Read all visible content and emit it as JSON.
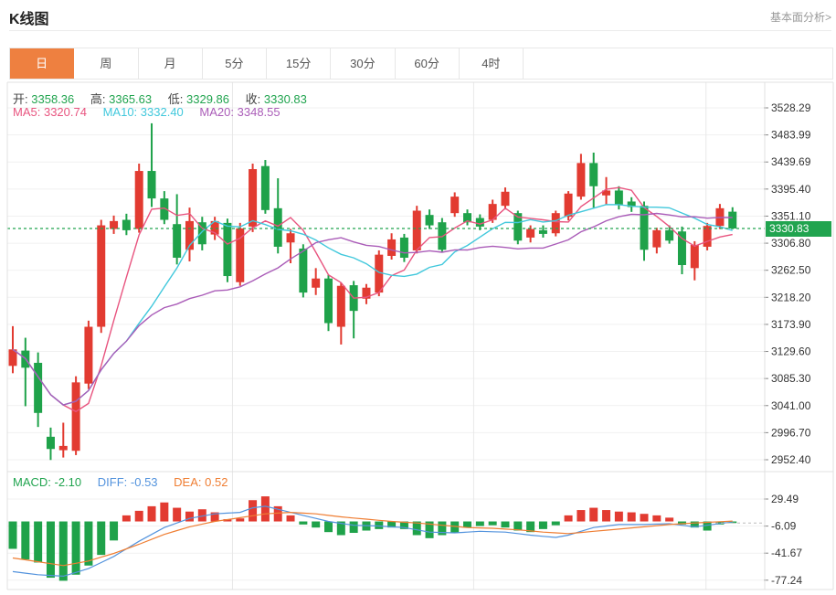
{
  "header": {
    "title": "K线图",
    "link": "基本面分析>"
  },
  "tabs": [
    {
      "name": "tab-day",
      "label": "日",
      "active": true
    },
    {
      "name": "tab-week",
      "label": "周",
      "active": false
    },
    {
      "name": "tab-month",
      "label": "月",
      "active": false
    },
    {
      "name": "tab-5min",
      "label": "5分",
      "active": false
    },
    {
      "name": "tab-15min",
      "label": "15分",
      "active": false
    },
    {
      "name": "tab-30min",
      "label": "30分",
      "active": false
    },
    {
      "name": "tab-60min",
      "label": "60分",
      "active": false
    },
    {
      "name": "tab-4hour",
      "label": "4时",
      "active": false
    }
  ],
  "info": {
    "open_label": "开:",
    "open": "3358.36",
    "high_label": "高:",
    "high": "3365.63",
    "low_label": "低:",
    "low": "3329.86",
    "close_label": "收:",
    "close": "3330.83",
    "ma5_label": "MA5:",
    "ma5": "3320.74",
    "ma10_label": "MA10:",
    "ma10": "3332.40",
    "ma20_label": "MA20:",
    "ma20": "3348.55"
  },
  "macd_info": {
    "macd_label": "MACD:",
    "macd": "-2.10",
    "diff_label": "DIFF:",
    "diff": "-0.53",
    "dea_label": "DEA:",
    "dea": "0.52"
  },
  "colors": {
    "up": "#e23b31",
    "down": "#1fa24a",
    "value_green": "#21a44f",
    "ma5": "#e8547f",
    "ma10": "#41c8dc",
    "ma20": "#aa5cb8",
    "diff_line": "#5393dd",
    "dea_line": "#ef7e33",
    "accent": "#ee8040",
    "badge": "#21a44f",
    "grid": "#f1f1f1",
    "vgrid": "#e8e8e8",
    "border": "#e0e0e0",
    "tick_text": "#333"
  },
  "chart_data": {
    "type": "candlestick+macd",
    "title": "K线图 (日K)",
    "last_price": 3330.83,
    "last_price_label": "3330.83",
    "y_ticks": [
      3528.29,
      3483.99,
      3439.69,
      3395.4,
      3351.1,
      3306.8,
      3262.5,
      3218.2,
      3173.9,
      3129.6,
      3085.3,
      3041.0,
      2996.7,
      2952.4
    ],
    "macd_ticks": [
      29.49,
      -6.09,
      -41.67,
      -77.24
    ],
    "ma_windows": [
      5,
      10,
      20
    ],
    "vline_indices": [
      17.4,
      36.5,
      54.9
    ],
    "candles_ohlc": [
      [
        3106,
        3171,
        3094,
        3133
      ],
      [
        3131,
        3152,
        3040,
        3103
      ],
      [
        3111,
        3128,
        3006,
        3029
      ],
      [
        2990,
        3005,
        2952,
        2970
      ],
      [
        2968,
        3013,
        2956,
        2975
      ],
      [
        2967,
        3089,
        2960,
        3079
      ],
      [
        3077,
        3180,
        3068,
        3170
      ],
      [
        3170,
        3345,
        3160,
        3336
      ],
      [
        3330,
        3352,
        3322,
        3343
      ],
      [
        3345,
        3355,
        3320,
        3328
      ],
      [
        3330,
        3437,
        3324,
        3425
      ],
      [
        3425,
        3503,
        3366,
        3380
      ],
      [
        3380,
        3392,
        3338,
        3345
      ],
      [
        3338,
        3387,
        3272,
        3283
      ],
      [
        3296,
        3365,
        3277,
        3343
      ],
      [
        3341,
        3350,
        3295,
        3305
      ],
      [
        3321,
        3350,
        3312,
        3343
      ],
      [
        3340,
        3347,
        3243,
        3253
      ],
      [
        3243,
        3340,
        3237,
        3331
      ],
      [
        3334,
        3437,
        3325,
        3428
      ],
      [
        3433,
        3443,
        3355,
        3361
      ],
      [
        3364,
        3413,
        3290,
        3301
      ],
      [
        3308,
        3330,
        3274,
        3323
      ],
      [
        3298,
        3305,
        3218,
        3226
      ],
      [
        3234,
        3266,
        3222,
        3249
      ],
      [
        3249,
        3255,
        3163,
        3176
      ],
      [
        3170,
        3242,
        3141,
        3237
      ],
      [
        3238,
        3245,
        3151,
        3196
      ],
      [
        3216,
        3240,
        3207,
        3234
      ],
      [
        3226,
        3295,
        3220,
        3288
      ],
      [
        3286,
        3323,
        3280,
        3313
      ],
      [
        3316,
        3322,
        3276,
        3283
      ],
      [
        3295,
        3368,
        3290,
        3360
      ],
      [
        3353,
        3362,
        3330,
        3336
      ],
      [
        3341,
        3348,
        3292,
        3296
      ],
      [
        3356,
        3390,
        3350,
        3383
      ],
      [
        3356,
        3362,
        3336,
        3341
      ],
      [
        3348,
        3354,
        3328,
        3334
      ],
      [
        3345,
        3378,
        3340,
        3371
      ],
      [
        3368,
        3398,
        3362,
        3391
      ],
      [
        3356,
        3360,
        3305,
        3311
      ],
      [
        3316,
        3336,
        3308,
        3330
      ],
      [
        3328,
        3336,
        3316,
        3322
      ],
      [
        3323,
        3360,
        3318,
        3356
      ],
      [
        3350,
        3392,
        3344,
        3388
      ],
      [
        3383,
        3453,
        3378,
        3438
      ],
      [
        3438,
        3455,
        3365,
        3400
      ],
      [
        3385,
        3415,
        3370,
        3393
      ],
      [
        3393,
        3400,
        3362,
        3370
      ],
      [
        3375,
        3382,
        3358,
        3366
      ],
      [
        3368,
        3375,
        3278,
        3296
      ],
      [
        3300,
        3332,
        3290,
        3328
      ],
      [
        3328,
        3336,
        3306,
        3311
      ],
      [
        3326,
        3334,
        3256,
        3271
      ],
      [
        3266,
        3310,
        3246,
        3304
      ],
      [
        3301,
        3340,
        3295,
        3335
      ],
      [
        3335,
        3371,
        3330,
        3364
      ],
      [
        3358.36,
        3365.63,
        3329.86,
        3330.83
      ]
    ],
    "macd_hist": [
      -36,
      -50,
      -54,
      -74,
      -78,
      -70,
      -58,
      -44,
      -25,
      8,
      14,
      20,
      25,
      18,
      13,
      16,
      12,
      3,
      4,
      28,
      33,
      20,
      8,
      -4,
      -8,
      -14,
      -18,
      -15,
      -12,
      -10,
      -8,
      -10,
      -18,
      -22,
      -18,
      -15,
      -8,
      -6,
      -5,
      -8,
      -12,
      -14,
      -10,
      -5,
      8,
      15,
      18,
      15,
      13,
      12,
      10,
      8,
      5,
      -4,
      -8,
      -12,
      -4,
      -2.1
    ],
    "diff_keypoints": [
      [
        0,
        -66
      ],
      [
        2,
        -70
      ],
      [
        4,
        -72
      ],
      [
        6,
        -62
      ],
      [
        8,
        -46
      ],
      [
        10,
        -26
      ],
      [
        12,
        -8
      ],
      [
        14,
        4
      ],
      [
        16,
        10
      ],
      [
        18,
        12
      ],
      [
        19,
        18
      ],
      [
        20,
        20
      ],
      [
        21,
        16
      ],
      [
        23,
        8
      ],
      [
        25,
        0
      ],
      [
        27,
        -5
      ],
      [
        29,
        -6
      ],
      [
        31,
        -8
      ],
      [
        33,
        -14
      ],
      [
        35,
        -15
      ],
      [
        37,
        -13
      ],
      [
        39,
        -14
      ],
      [
        41,
        -18
      ],
      [
        43,
        -21
      ],
      [
        44,
        -18
      ],
      [
        46,
        -8
      ],
      [
        48,
        -4
      ],
      [
        50,
        -4
      ],
      [
        52,
        -3
      ],
      [
        54,
        -7
      ],
      [
        55,
        -5
      ],
      [
        57,
        -0.53
      ]
    ],
    "dea_keypoints": [
      [
        0,
        -48
      ],
      [
        2,
        -53
      ],
      [
        4,
        -58
      ],
      [
        6,
        -52
      ],
      [
        8,
        -42
      ],
      [
        10,
        -30
      ],
      [
        12,
        -17
      ],
      [
        14,
        -7
      ],
      [
        16,
        0
      ],
      [
        18,
        5
      ],
      [
        20,
        10
      ],
      [
        22,
        12
      ],
      [
        24,
        10
      ],
      [
        26,
        6
      ],
      [
        28,
        3
      ],
      [
        30,
        0
      ],
      [
        32,
        -2
      ],
      [
        34,
        -5
      ],
      [
        36,
        -8
      ],
      [
        38,
        -9
      ],
      [
        40,
        -11
      ],
      [
        42,
        -14
      ],
      [
        44,
        -16
      ],
      [
        46,
        -13
      ],
      [
        48,
        -10
      ],
      [
        50,
        -7
      ],
      [
        52,
        -4
      ],
      [
        54,
        -2
      ],
      [
        57,
        0.52
      ]
    ]
  }
}
